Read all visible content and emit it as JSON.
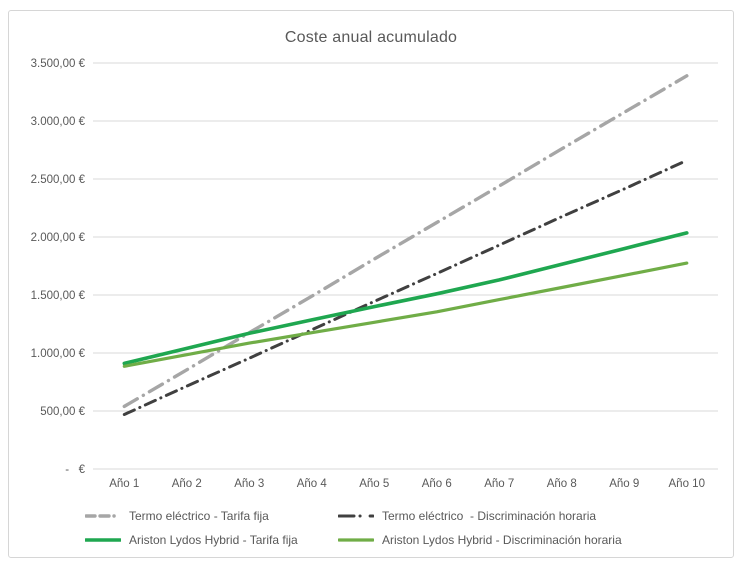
{
  "chart_data": {
    "type": "line",
    "title": "Coste anual acumulado",
    "categories": [
      "Año 1",
      "Año 2",
      "Año 3",
      "Año 4",
      "Año 5",
      "Año 6",
      "Año 7",
      "Año 8",
      "Año 9",
      "Año 10"
    ],
    "series": [
      {
        "name": "Termo eléctrico - Tarifa fija",
        "color": "#a6a6a6",
        "style": "dashed",
        "values": [
          540,
          855,
          1175,
          1490,
          1810,
          2125,
          2440,
          2760,
          3075,
          3390
        ]
      },
      {
        "name": "Termo eléctrico  - Discriminación horaria",
        "color": "#404040",
        "style": "dash-dot",
        "values": [
          470,
          715,
          955,
          1200,
          1445,
          1685,
          1930,
          2175,
          2415,
          2660
        ]
      },
      {
        "name": "Ariston Lydos Hybrid - Tarifa fija",
        "color": "#1fa750",
        "style": "solid",
        "values": [
          910,
          1040,
          1170,
          1285,
          1400,
          1510,
          1630,
          1765,
          1900,
          2035
        ]
      },
      {
        "name": "Ariston Lydos Hybrid - Discriminación horaria",
        "color": "#70ad47",
        "style": "solid",
        "values": [
          885,
          985,
          1085,
          1175,
          1265,
          1355,
          1460,
          1565,
          1670,
          1775
        ]
      }
    ],
    "ylim": [
      0,
      3500
    ],
    "ytick_step": 500,
    "yticks": [
      {
        "value": 0,
        "label": "-   €"
      },
      {
        "value": 500,
        "label": "500,00 €"
      },
      {
        "value": 1000,
        "label": "1.000,00 €"
      },
      {
        "value": 1500,
        "label": "1.500,00 €"
      },
      {
        "value": 2000,
        "label": "2.000,00 €"
      },
      {
        "value": 2500,
        "label": "2.500,00 €"
      },
      {
        "value": 3000,
        "label": "3.000,00 €"
      },
      {
        "value": 3500,
        "label": "3.500,00 €"
      }
    ],
    "grid": true,
    "legend_position": "bottom",
    "axis_color": "#d9d9d9",
    "label_color": "#595959"
  }
}
